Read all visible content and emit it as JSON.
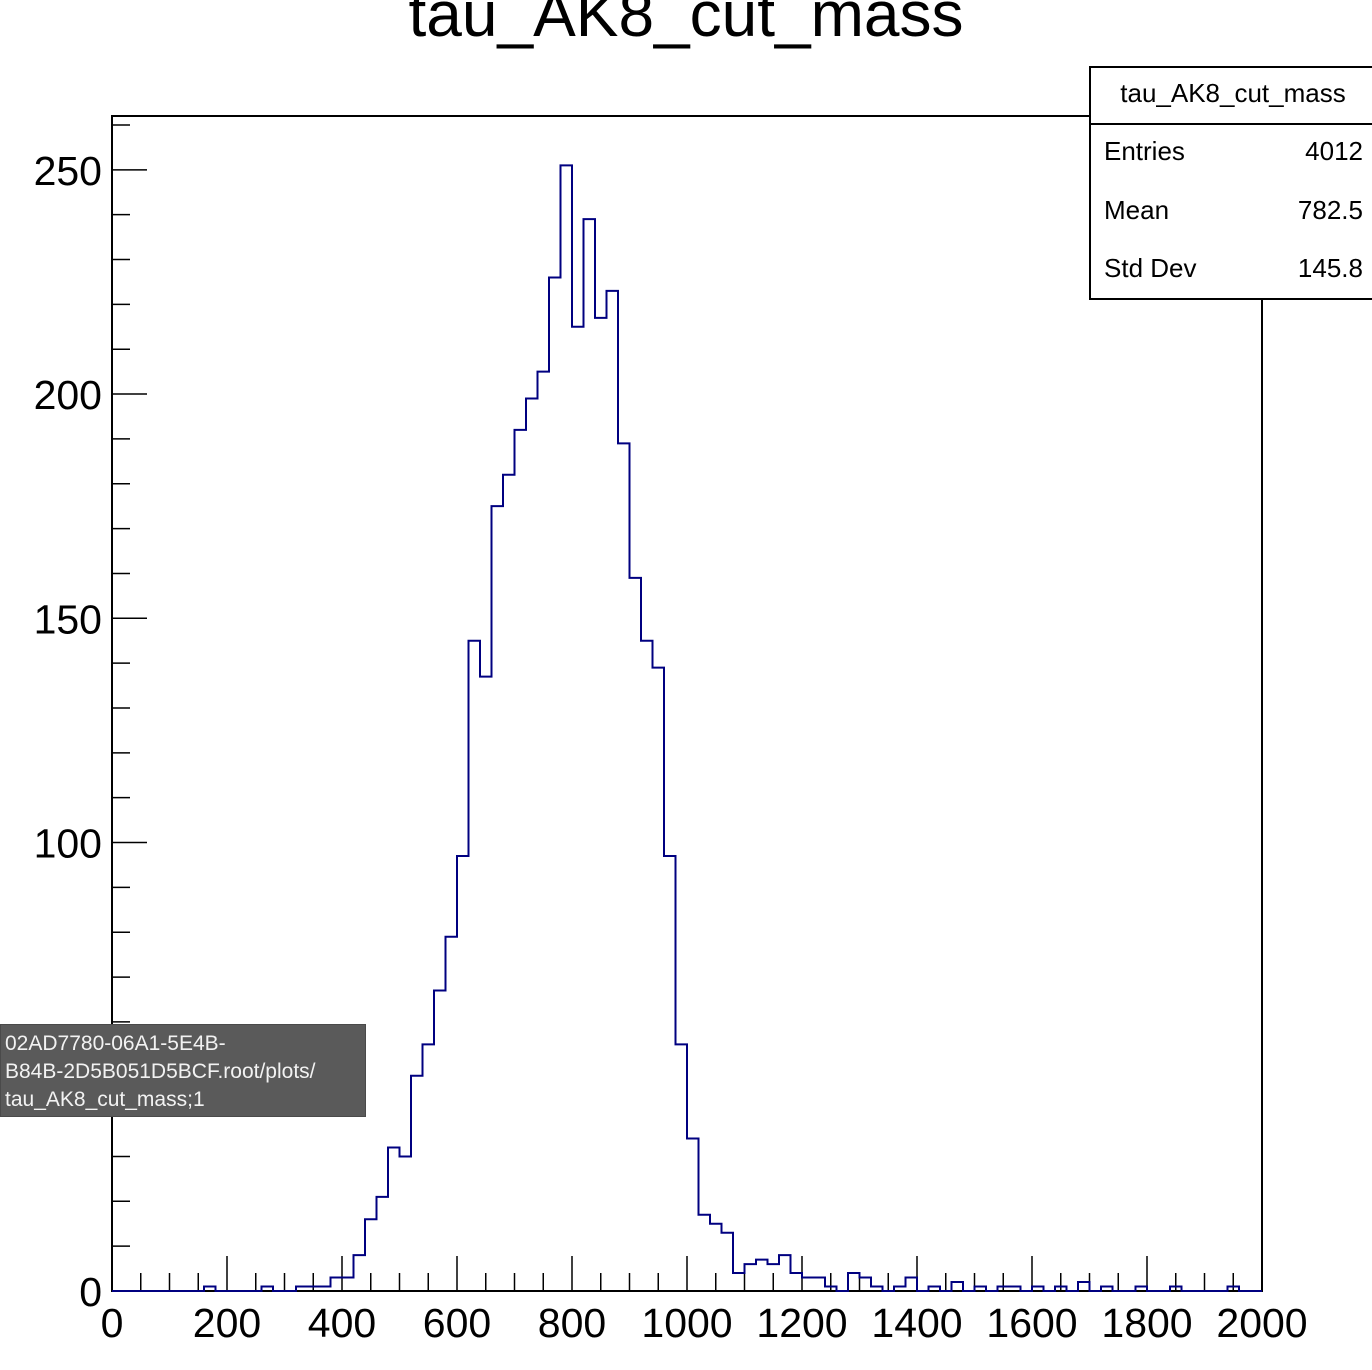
{
  "chart_data": {
    "type": "bar",
    "title": "tau_AK8_cut_mass",
    "xlabel": "",
    "ylabel": "",
    "xlim": [
      0,
      2000
    ],
    "ylim": [
      0,
      262
    ],
    "bin_width": 20,
    "line_color": "#000080",
    "x_ticks": [
      0,
      200,
      400,
      600,
      800,
      1000,
      1200,
      1400,
      1600,
      1800,
      2000
    ],
    "x_tick_labels": [
      "0",
      "200",
      "400",
      "600",
      "800",
      "1000",
      "1200",
      "1400",
      "1600",
      "1800",
      "2000"
    ],
    "y_ticks": [
      0,
      50,
      100,
      150,
      200,
      250
    ],
    "y_tick_labels": [
      "0",
      "",
      "100",
      "150",
      "200",
      "250"
    ],
    "values": [
      0,
      0,
      0,
      0,
      0,
      0,
      0,
      0,
      1,
      0,
      0,
      0,
      0,
      1,
      0,
      0,
      1,
      1,
      1,
      3,
      3,
      8,
      16,
      21,
      32,
      30,
      48,
      55,
      67,
      79,
      97,
      145,
      137,
      175,
      182,
      192,
      199,
      205,
      226,
      251,
      215,
      239,
      217,
      223,
      189,
      159,
      145,
      139,
      97,
      55,
      34,
      17,
      15,
      13,
      4,
      6,
      7,
      6,
      8,
      4,
      3,
      3,
      1,
      0,
      4,
      3,
      1,
      0,
      1,
      3,
      0,
      1,
      0,
      2,
      0,
      1,
      0,
      1,
      1,
      0,
      1,
      0,
      1,
      0,
      2,
      0,
      1,
      0,
      0,
      1,
      0,
      0,
      1,
      0,
      0,
      0,
      0,
      1,
      0,
      0
    ]
  },
  "stats_box": {
    "title": "tau_AK8_cut_mass",
    "entries_label": "Entries",
    "entries_value": "4012",
    "mean_label": "Mean",
    "mean_value": "782.5",
    "stddev_label": "Std Dev",
    "stddev_value": "145.8"
  },
  "tooltip": {
    "text": "02AD7780-06A1-5E4B-\nB84B-2D5B051D5BCF.root/plots/\ntau_AK8_cut_mass;1"
  }
}
